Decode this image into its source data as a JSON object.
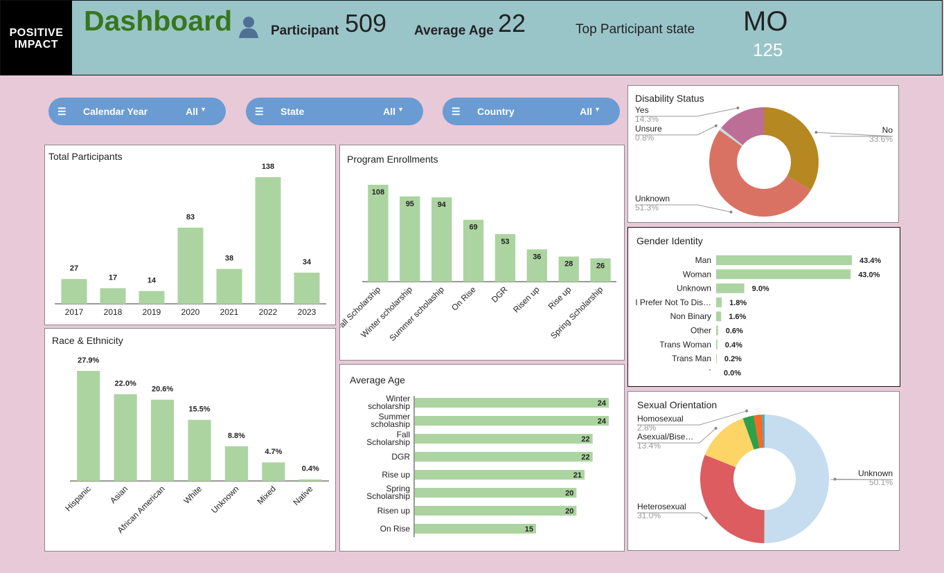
{
  "header": {
    "logo_text": "POSITIVE IMPACT",
    "title": "Dashboard",
    "participant_label": "Participant",
    "participant_value": "509",
    "avg_age_label": "Average Age",
    "avg_age_value": "22",
    "top_state_label": "Top Participant state",
    "top_state_value": "MO",
    "top_state_count": "125"
  },
  "filters": [
    {
      "label": "Calendar Year",
      "value": "All"
    },
    {
      "label": "State",
      "value": "All"
    },
    {
      "label": "Country",
      "value": "All"
    }
  ],
  "colors": {
    "bar": "#acd4a0",
    "header": "#99c5c9",
    "background": "#e8c9d8",
    "filter": "#6a9bd3",
    "title": "#38761d"
  },
  "chart_data": [
    {
      "id": "total",
      "type": "bar",
      "title": "Total Participants",
      "categories": [
        "2017",
        "2018",
        "2019",
        "2020",
        "2021",
        "2022",
        "2023"
      ],
      "values": [
        27,
        17,
        14,
        83,
        38,
        138,
        34
      ],
      "labels": [
        "27",
        "17",
        "14",
        "83",
        "38",
        "138",
        "34"
      ]
    },
    {
      "id": "program",
      "type": "bar",
      "title": "Program Enrollments",
      "categories": [
        "Fall Scholarship",
        "Winter scholarship",
        "Summer scholaship",
        "On Rise",
        "DGR",
        "Risen up",
        "Rise up",
        "Spring Scholarship"
      ],
      "values": [
        108,
        95,
        94,
        69,
        53,
        36,
        28,
        26
      ],
      "labels": [
        "108",
        "95",
        "94",
        "69",
        "53",
        "36",
        "28",
        "26"
      ]
    },
    {
      "id": "race",
      "type": "bar",
      "title": "Race & Ethnicity",
      "categories": [
        "Hispanic",
        "Asian",
        "African American",
        "White",
        "Unknown",
        "Mixed",
        "Native"
      ],
      "values": [
        27.9,
        22.0,
        20.6,
        15.5,
        8.8,
        4.7,
        0.4
      ],
      "labels": [
        "27.9%",
        "22.0%",
        "20.6%",
        "15.5%",
        "8.8%",
        "4.7%",
        "0.4%"
      ]
    },
    {
      "id": "age",
      "type": "bar",
      "orientation": "horizontal",
      "title": "Average Age",
      "categories": [
        "Winter scholarship",
        "Summer scholaship",
        "Fall Scholarship",
        "DGR",
        "Rise up",
        "Spring Scholarship",
        "Risen up",
        "On Rise"
      ],
      "values": [
        24,
        24,
        22,
        22,
        21,
        20,
        20,
        15
      ],
      "labels": [
        "24",
        "24",
        "22",
        "22",
        "21",
        "20",
        "20",
        "15"
      ]
    },
    {
      "id": "gender",
      "type": "bar",
      "orientation": "horizontal",
      "title": "Gender Identity",
      "categories": [
        "Man",
        "Woman",
        "Unknown",
        "I Prefer Not To Dis…",
        "Non Binary",
        "Other",
        "Trans Woman",
        "Trans Man",
        "`"
      ],
      "values": [
        43.4,
        43.0,
        9.0,
        1.8,
        1.6,
        0.6,
        0.4,
        0.2,
        0.0
      ],
      "labels": [
        "43.4%",
        "43.0%",
        "9.0%",
        "1.8%",
        "1.6%",
        "0.6%",
        "0.4%",
        "0.2%",
        "0.0%"
      ]
    },
    {
      "id": "disability",
      "type": "pie",
      "donut": true,
      "title": "Disability Status",
      "slices": [
        {
          "name": "No",
          "value": 33.6,
          "label": "33.6%",
          "color": "#b68822"
        },
        {
          "name": "Unknown",
          "value": 51.3,
          "label": "51.3%",
          "color": "#da7263"
        },
        {
          "name": "Unsure",
          "value": 0.8,
          "label": "0.8%",
          "color": "#c5dde0"
        },
        {
          "name": "Yes",
          "value": 14.3,
          "label": "14.3%",
          "color": "#bd6e96"
        }
      ]
    },
    {
      "id": "orientation",
      "type": "pie",
      "donut": true,
      "title": "Sexual Orientation",
      "slices": [
        {
          "name": "Unknown",
          "value": 50.1,
          "label": "50.1%",
          "color": "#c6dcef"
        },
        {
          "name": "Heterosexual",
          "value": 31.0,
          "label": "31.0%",
          "color": "#dc5c60"
        },
        {
          "name": "Asexual/Bise…",
          "value": 13.4,
          "label": "13.4%",
          "color": "#fdd566"
        },
        {
          "name": "Homosexual",
          "value": 2.8,
          "label": "2.8%",
          "color": "#2ea04a"
        },
        {
          "value": 2.1,
          "color": "#fb6725"
        },
        {
          "value": 0.6,
          "color": "#39b3c9"
        }
      ]
    }
  ]
}
